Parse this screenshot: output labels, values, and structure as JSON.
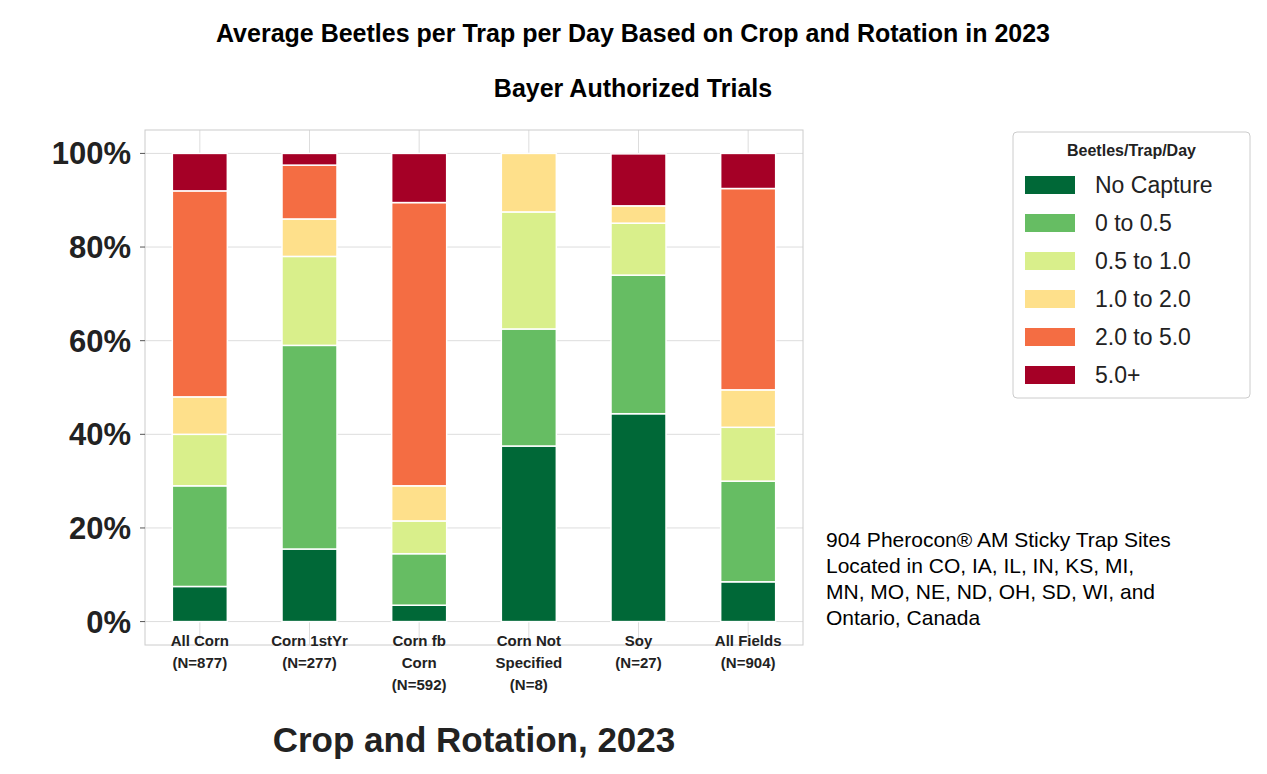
{
  "chart_data": {
    "type": "bar",
    "title": "Average Beetles per Trap per Day Based on Crop and Rotation in 2023",
    "subtitle": "Bayer Authorized Trials",
    "x_label": "Crop and Rotation, 2023",
    "legend_title": "Beetles/Trap/Day",
    "annotation": "904 Pherocon® AM Sticky Trap Sites\nLocated in CO, IA, IL, IN, KS, MI,\nMN, MO, NE, ND, OH, SD, WI, and\nOntario, Canada",
    "categories": [
      "All Corn\n(N=877)",
      "Corn 1stYr\n(N=277)",
      "Corn fb\nCorn\n(N=592)",
      "Corn Not\nSpecified\n(N=8)",
      "Soy\n(N=27)",
      "All Fields\n(N=904)"
    ],
    "series": [
      {
        "name": "No Capture",
        "color": "#006837",
        "values": [
          7.5,
          15.5,
          3.5,
          37.5,
          44.4,
          8.5
        ]
      },
      {
        "name": "0 to 0.5",
        "color": "#66bd63",
        "values": [
          21.5,
          43.5,
          11,
          25,
          29.6,
          21.5
        ]
      },
      {
        "name": "0.5 to 1.0",
        "color": "#d9ef8b",
        "values": [
          11,
          19,
          7,
          25,
          11.1,
          11.5
        ]
      },
      {
        "name": "1.0 to 2.0",
        "color": "#fee08b",
        "values": [
          8,
          8,
          7.5,
          12.5,
          3.7,
          8
        ]
      },
      {
        "name": "2.0 to 5.0",
        "color": "#f46d43",
        "values": [
          44,
          11.5,
          60.5,
          0,
          0,
          43
        ]
      },
      {
        "name": "5.0+",
        "color": "#a50026",
        "values": [
          8,
          2.5,
          10.5,
          0,
          11.1,
          7.5
        ]
      }
    ],
    "ylim": [
      -5,
      105
    ],
    "yticks": [
      {
        "value": 0,
        "label": "0%"
      },
      {
        "value": 20,
        "label": "20%"
      },
      {
        "value": 40,
        "label": "40%"
      },
      {
        "value": 60,
        "label": "60%"
      },
      {
        "value": 80,
        "label": "80%"
      },
      {
        "value": 100,
        "label": "100%"
      }
    ],
    "stacked": true,
    "grid": true,
    "legend": "right"
  }
}
